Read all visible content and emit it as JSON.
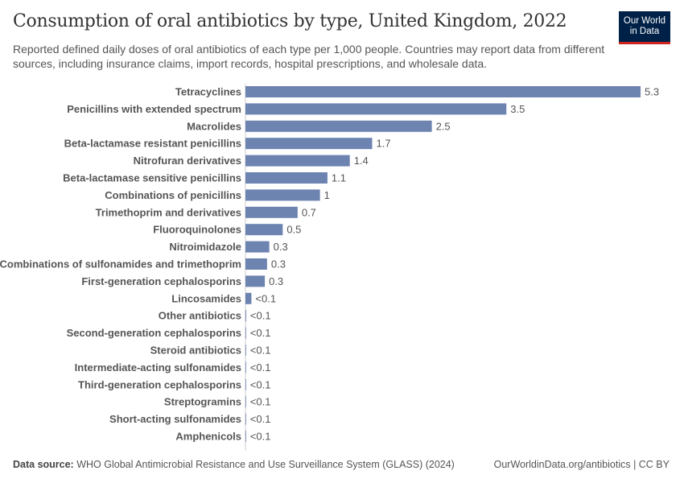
{
  "title": "Consumption of oral antibiotics by type, United Kingdom, 2022",
  "subtitle": "Reported defined daily doses of oral antibiotics of each type per 1,000 people. Countries may report data from different sources, including insurance claims, import records, hospital prescriptions, and wholesale data.",
  "logo": "Our World in Data",
  "footer": {
    "source_label": "Data source:",
    "source": "WHO Global Antimicrobial Resistance and Use Surveillance System (GLASS) (2024)",
    "url": "OurWorldinData.org/antibiotics | CC BY"
  },
  "chart_data": {
    "type": "bar",
    "orientation": "horizontal",
    "bar_color": "#6d83b0",
    "categories": [
      "Tetracyclines",
      "Penicillins with extended spectrum",
      "Macrolides",
      "Beta-lactamase resistant penicillins",
      "Nitrofuran derivatives",
      "Beta-lactamase sensitive penicillins",
      "Combinations of penicillins",
      "Trimethoprim and derivatives",
      "Fluoroquinolones",
      "Nitroimidazole",
      "Combinations of sulfonamides and trimethoprim",
      "First-generation cephalosporins",
      "Lincosamides",
      "Other antibiotics",
      "Second-generation cephalosporins",
      "Steroid antibiotics",
      "Intermediate-acting sulfonamides",
      "Third-generation cephalosporins",
      "Streptogramins",
      "Short-acting sulfonamides",
      "Amphenicols"
    ],
    "values": [
      5.3,
      3.5,
      2.5,
      1.7,
      1.4,
      1.1,
      1.0,
      0.7,
      0.5,
      0.32,
      0.29,
      0.26,
      0.08,
      0.01,
      0.003,
      0.002,
      0.001,
      0.001,
      0.001,
      0.001,
      0.0005
    ],
    "data_labels": [
      "5.3",
      "3.5",
      "2.5",
      "1.7",
      "1.4",
      "1.1",
      "1",
      "0.7",
      "0.5",
      "0.3",
      "0.3",
      "0.3",
      "<0.1",
      "<0.1",
      "<0.1",
      "<0.1",
      "<0.1",
      "<0.1",
      "<0.1",
      "<0.1",
      "<0.1"
    ],
    "xlim": [
      0,
      5.3
    ]
  }
}
